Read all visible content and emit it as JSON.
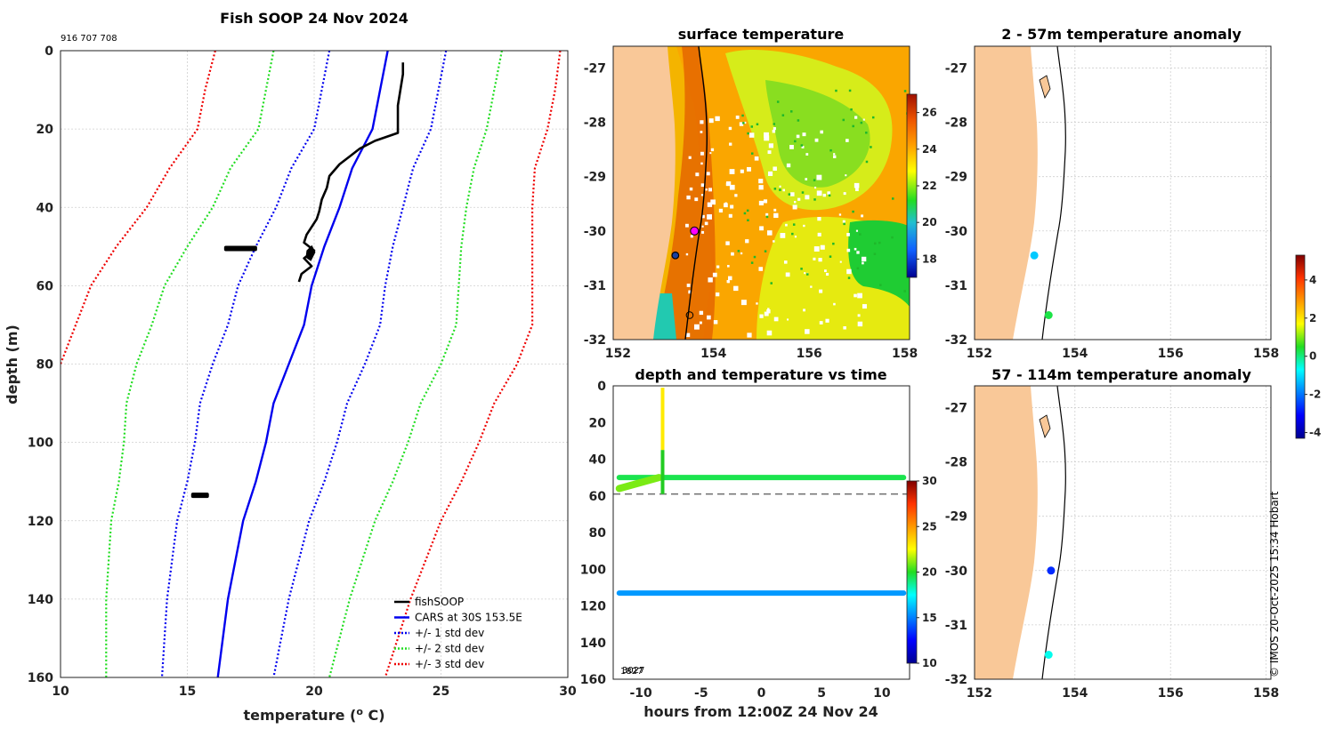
{
  "chart_data": [
    {
      "type": "line",
      "title": "Fish SOOP 24 Nov 2024",
      "id_text": "916 707 708",
      "xlabel": "temperature (",
      "xlabel_unit": "o",
      "xlabel_end": " C)",
      "ylabel": "depth (m)",
      "xlim": [
        10,
        30
      ],
      "ylim": [
        0,
        160
      ],
      "x_ticks": [
        "10",
        "15",
        "20",
        "25",
        "30"
      ],
      "y_ticks": [
        "0",
        "20",
        "40",
        "60",
        "80",
        "100",
        "120",
        "140",
        "160"
      ],
      "legend": [
        {
          "label": "fishSOOP",
          "color": "#000000",
          "style": "solid"
        },
        {
          "label": "CARS at 30S 153.5E",
          "color": "#0000ee",
          "style": "solid"
        },
        {
          "label": "+/- 1 std dev",
          "color": "#0000ee",
          "style": "dotted"
        },
        {
          "label": "+/- 2 std dev",
          "color": "#22dd22",
          "style": "dotted"
        },
        {
          "label": "+/- 3 std dev",
          "color": "#ee0000",
          "style": "dotted"
        }
      ],
      "depths": [
        0,
        10,
        20,
        30,
        40,
        50,
        60,
        70,
        80,
        90,
        100,
        110,
        120,
        130,
        140,
        150,
        160
      ],
      "cars_mean": [
        22.9,
        22.6,
        22.3,
        21.5,
        21.0,
        20.4,
        19.9,
        19.6,
        19.0,
        18.4,
        18.1,
        17.7,
        17.2,
        16.9,
        16.6,
        16.4,
        16.2
      ],
      "std_offsets": [
        {
          "k": 1,
          "values": [
            2.3,
            2.3,
            2.3,
            2.4,
            2.5,
            2.7,
            2.9,
            3.0,
            3.0,
            2.9,
            2.8,
            2.7,
            2.6,
            2.5,
            2.4,
            2.3,
            2.2
          ]
        },
        {
          "k": 2,
          "values": [
            4.5,
            4.5,
            4.5,
            4.8,
            5.0,
            5.4,
            5.8,
            6.0,
            6.0,
            5.8,
            5.6,
            5.4,
            5.2,
            5.0,
            4.8,
            4.6,
            4.4
          ]
        },
        {
          "k": 3,
          "values": [
            6.8,
            6.9,
            6.9,
            7.2,
            7.6,
            8.2,
            8.7,
            9.0,
            9.0,
            8.7,
            8.4,
            8.1,
            7.8,
            7.5,
            7.2,
            6.9,
            6.6
          ]
        }
      ],
      "fishsoop_profile": [
        [
          23.5,
          3
        ],
        [
          23.5,
          6
        ],
        [
          23.4,
          10
        ],
        [
          23.3,
          14
        ],
        [
          23.3,
          18
        ],
        [
          23.3,
          21
        ],
        [
          22.4,
          23
        ],
        [
          21.8,
          25
        ],
        [
          21.4,
          27
        ],
        [
          21.0,
          29
        ],
        [
          20.6,
          32
        ],
        [
          20.5,
          35
        ],
        [
          20.3,
          38
        ],
        [
          20.2,
          41
        ],
        [
          20.1,
          43
        ],
        [
          19.9,
          45
        ],
        [
          19.7,
          47
        ],
        [
          19.6,
          49
        ],
        [
          20.0,
          51
        ],
        [
          19.6,
          53
        ],
        [
          19.9,
          55
        ],
        [
          19.5,
          57
        ],
        [
          19.4,
          59
        ]
      ],
      "fishsoop_blobs": [
        {
          "temperature": 17.1,
          "depth": 50.5,
          "width": 1.3
        },
        {
          "temperature": 15.5,
          "depth": 113.5,
          "width": 0.7
        }
      ]
    },
    {
      "type": "heatmap",
      "title": "surface temperature",
      "xlim": [
        151.9,
        158.1
      ],
      "ylim": [
        -32,
        -26.6
      ],
      "x_ticks": [
        "152",
        "154",
        "156",
        "158"
      ],
      "y_ticks": [
        "-27",
        "-28",
        "-29",
        "-30",
        "-31",
        "-32"
      ],
      "colorbar": {
        "min": 17,
        "max": 27,
        "ticks": [
          "18",
          "20",
          "22",
          "24",
          "26"
        ]
      },
      "markers": [
        {
          "lon": 153.6,
          "lat": -30.0,
          "kind": "magenta-dot"
        },
        {
          "lon": 153.2,
          "lat": -30.45,
          "kind": "ring-dark"
        },
        {
          "lon": 153.5,
          "lat": -31.55,
          "kind": "ring-open"
        }
      ]
    },
    {
      "type": "scatter",
      "title": "depth and temperature vs time",
      "xlabel": "hours from 12:00Z 24 Nov 24",
      "xlim": [
        -12.3,
        12.3
      ],
      "ylim": [
        0,
        160
      ],
      "x_ticks": [
        "-10",
        "-5",
        "0",
        "5",
        "10"
      ],
      "y_ticks": [
        "0",
        "20",
        "40",
        "60",
        "80",
        "100",
        "120",
        "140",
        "160"
      ],
      "colorbar": {
        "min": 10,
        "max": 30,
        "ticks": [
          "10",
          "15",
          "20",
          "25",
          "30"
        ]
      },
      "reference_depth": 59,
      "tracks": [
        {
          "name": "shallow",
          "depth_start": 50,
          "depth_end": 50,
          "temperature": 19.5
        },
        {
          "name": "deep",
          "depth_start": 113,
          "depth_end": 113,
          "temperature": 15.5
        }
      ],
      "cast": {
        "hour": -8.2,
        "depth_top": 1,
        "depth_bottom": 59,
        "temperature": 23
      },
      "initial_segment": {
        "hour_start": -11.8,
        "hour_end": -8.5,
        "depth_start": 56,
        "depth_end": 50,
        "temperature": 21
      },
      "corner_text": [
        "1827",
        "3027"
      ]
    },
    {
      "type": "scatter",
      "title": "2 - 57m temperature anomaly",
      "xlim": [
        151.9,
        158.1
      ],
      "ylim": [
        -32,
        -26.6
      ],
      "x_ticks": [
        "152",
        "154",
        "156",
        "158"
      ],
      "y_ticks": [
        "-27",
        "-28",
        "-29",
        "-30",
        "-31",
        "-32"
      ],
      "points": [
        {
          "lon": 153.15,
          "lat": -30.45,
          "anomaly": -1.2
        },
        {
          "lon": 153.45,
          "lat": -31.55,
          "anomaly": 0.3
        }
      ]
    },
    {
      "type": "scatter",
      "title": "57 - 114m temperature anomaly",
      "xlim": [
        151.9,
        158.1
      ],
      "ylim": [
        -32,
        -26.6
      ],
      "x_ticks": [
        "152",
        "154",
        "156",
        "158"
      ],
      "y_ticks": [
        "-27",
        "-28",
        "-29",
        "-30",
        "-31",
        "-32"
      ],
      "points": [
        {
          "lon": 153.5,
          "lat": -30.0,
          "anomaly": -2.7
        },
        {
          "lon": 153.45,
          "lat": -31.55,
          "anomaly": -0.6
        }
      ]
    }
  ],
  "anomaly_colorbar": {
    "min": -4.3,
    "max": 5.3,
    "ticks": [
      "4",
      "2",
      "0",
      "-2",
      "-4"
    ]
  },
  "watermark": "© IMOS 20-Oct-2025 15:34 Hobart"
}
